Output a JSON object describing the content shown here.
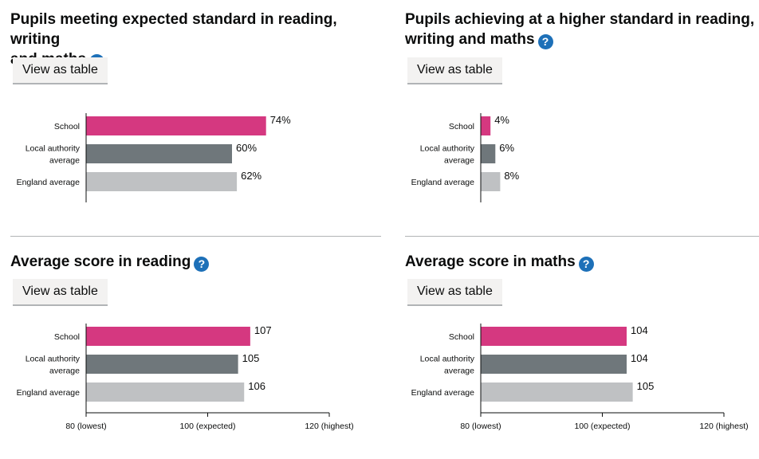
{
  "help_glyph": "?",
  "colors": {
    "school": "#d53880",
    "local_authority": "#6f777b",
    "england": "#bfc1c3"
  },
  "panels": [
    {
      "title_lines": [
        "Pupils meeting expected standard in reading, writing",
        "and maths"
      ],
      "button_label": "View as table"
    },
    {
      "title_lines": [
        "Pupils achieving at a higher standard in reading,",
        "writing and maths"
      ],
      "button_label": "View as table"
    },
    {
      "title_lines": [
        "Average score in reading"
      ],
      "button_label": "View as table"
    },
    {
      "title_lines": [
        "Average score in maths"
      ],
      "button_label": "View as table"
    }
  ],
  "chart_data": [
    {
      "type": "bar",
      "orientation": "horizontal",
      "categories": [
        "School",
        "Local authority average",
        "England average"
      ],
      "category_lines": [
        [
          "School"
        ],
        [
          "Local authority",
          "average"
        ],
        [
          "England average"
        ]
      ],
      "values": [
        74,
        60,
        62
      ],
      "value_labels": [
        "74%",
        "60%",
        "62%"
      ],
      "xlim": [
        0,
        100
      ],
      "x_tick_labels": []
    },
    {
      "type": "bar",
      "orientation": "horizontal",
      "categories": [
        "School",
        "Local authority average",
        "England average"
      ],
      "category_lines": [
        [
          "School"
        ],
        [
          "Local authority",
          "average"
        ],
        [
          "England average"
        ]
      ],
      "values": [
        4,
        6,
        8
      ],
      "value_labels": [
        "4%",
        "6%",
        "8%"
      ],
      "xlim": [
        0,
        100
      ],
      "x_tick_labels": []
    },
    {
      "type": "bar",
      "orientation": "horizontal",
      "categories": [
        "School",
        "Local authority average",
        "England average"
      ],
      "category_lines": [
        [
          "School"
        ],
        [
          "Local authority",
          "average"
        ],
        [
          "England average"
        ]
      ],
      "values": [
        107,
        105,
        106
      ],
      "value_labels": [
        "107",
        "105",
        "106"
      ],
      "xlim": [
        80,
        120
      ],
      "x_ticks": [
        80,
        100,
        120
      ],
      "x_tick_labels": [
        "80 (lowest)",
        "100 (expected)",
        "120 (highest)"
      ]
    },
    {
      "type": "bar",
      "orientation": "horizontal",
      "categories": [
        "School",
        "Local authority average",
        "England average"
      ],
      "category_lines": [
        [
          "School"
        ],
        [
          "Local authority",
          "average"
        ],
        [
          "England average"
        ]
      ],
      "values": [
        104,
        104,
        105
      ],
      "value_labels": [
        "104",
        "104",
        "105"
      ],
      "xlim": [
        80,
        120
      ],
      "x_ticks": [
        80,
        100,
        120
      ],
      "x_tick_labels": [
        "80 (lowest)",
        "100 (expected)",
        "120 (highest)"
      ]
    }
  ]
}
